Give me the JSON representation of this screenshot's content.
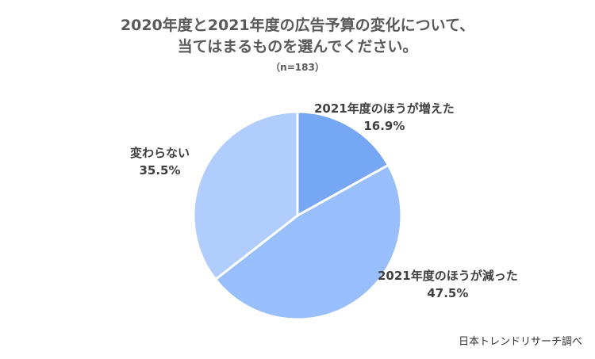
{
  "chart_data": {
    "type": "pie",
    "title_lines": [
      "2020年度と2021年度の広告予算の変化について、",
      "当てはまるものを選んでください。"
    ],
    "subtitle": "（n=183）",
    "slices": [
      {
        "label": "2021年度のほうが増えた",
        "value": 16.9,
        "display": "16.9%",
        "color": "#76a7f5"
      },
      {
        "label": "2021年度のほうが減った",
        "value": 47.5,
        "display": "47.5%",
        "color": "#98bffb"
      },
      {
        "label": "変わらない",
        "value": 35.5,
        "display": "35.5%",
        "color": "#b1cdfd"
      }
    ],
    "start": "12 o'clock",
    "direction": "clockwise",
    "legend": "none"
  },
  "source": "日本トレンドリサーチ調べ"
}
